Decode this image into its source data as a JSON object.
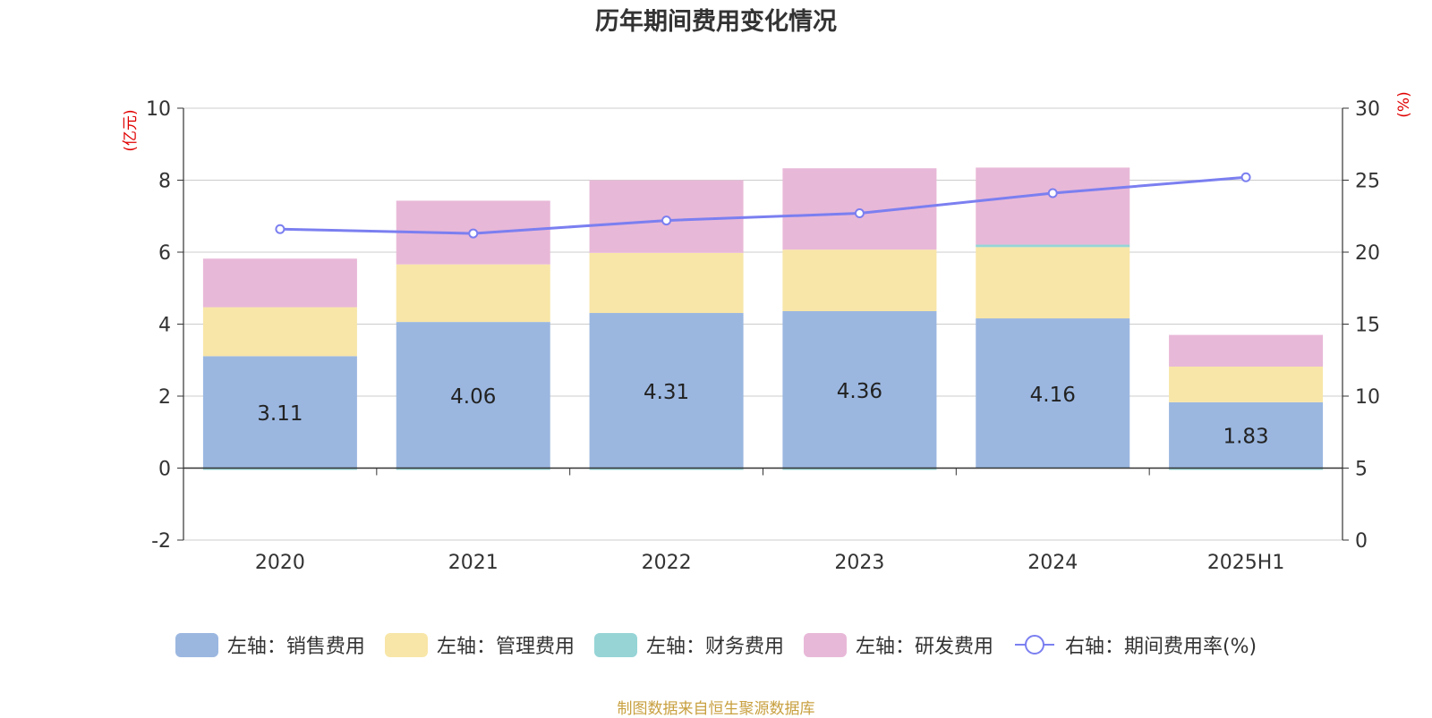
{
  "chart_data": {
    "type": "bar",
    "title": "历年期间费用变化情况",
    "left_axis_unit": "(亿元)",
    "right_axis_unit": "(%)",
    "categories": [
      "2020",
      "2021",
      "2022",
      "2023",
      "2024",
      "2025H1"
    ],
    "left_ylim": [
      -2,
      10
    ],
    "left_yticks": [
      -2,
      0,
      2,
      4,
      6,
      8,
      10
    ],
    "right_ylim": [
      0,
      30
    ],
    "right_yticks": [
      0,
      5,
      10,
      15,
      20,
      25,
      30
    ],
    "grid": true,
    "legend_position": "bottom",
    "series": [
      {
        "name": "左轴：销售费用",
        "kind": "bar",
        "axis": "left",
        "color": "#9bb7e0",
        "values": [
          3.11,
          4.06,
          4.31,
          4.36,
          4.16,
          1.83
        ],
        "show_labels": true
      },
      {
        "name": "左轴：管理费用",
        "kind": "bar",
        "axis": "left",
        "color": "#f8e6a8",
        "values": [
          1.36,
          1.6,
          1.67,
          1.71,
          1.98,
          0.99
        ],
        "show_labels": false
      },
      {
        "name": "左轴：财务费用",
        "kind": "bar",
        "axis": "left",
        "color": "#96d4d6",
        "values": [
          -0.05,
          -0.03,
          -0.05,
          -0.02,
          0.07,
          -0.01
        ],
        "show_labels": false
      },
      {
        "name": "左轴：研发费用",
        "kind": "bar",
        "axis": "left",
        "color": "#e8b8d8",
        "values": [
          1.35,
          1.77,
          2.02,
          2.26,
          2.14,
          0.88
        ],
        "show_labels": false
      },
      {
        "name": "右轴：期间费用率(%)",
        "kind": "line",
        "axis": "right",
        "color": "#7b7ff0",
        "values": [
          21.6,
          21.3,
          22.2,
          22.7,
          24.1,
          25.2
        ]
      }
    ]
  },
  "footer": {
    "source": "制图数据来自恒生聚源数据库"
  }
}
